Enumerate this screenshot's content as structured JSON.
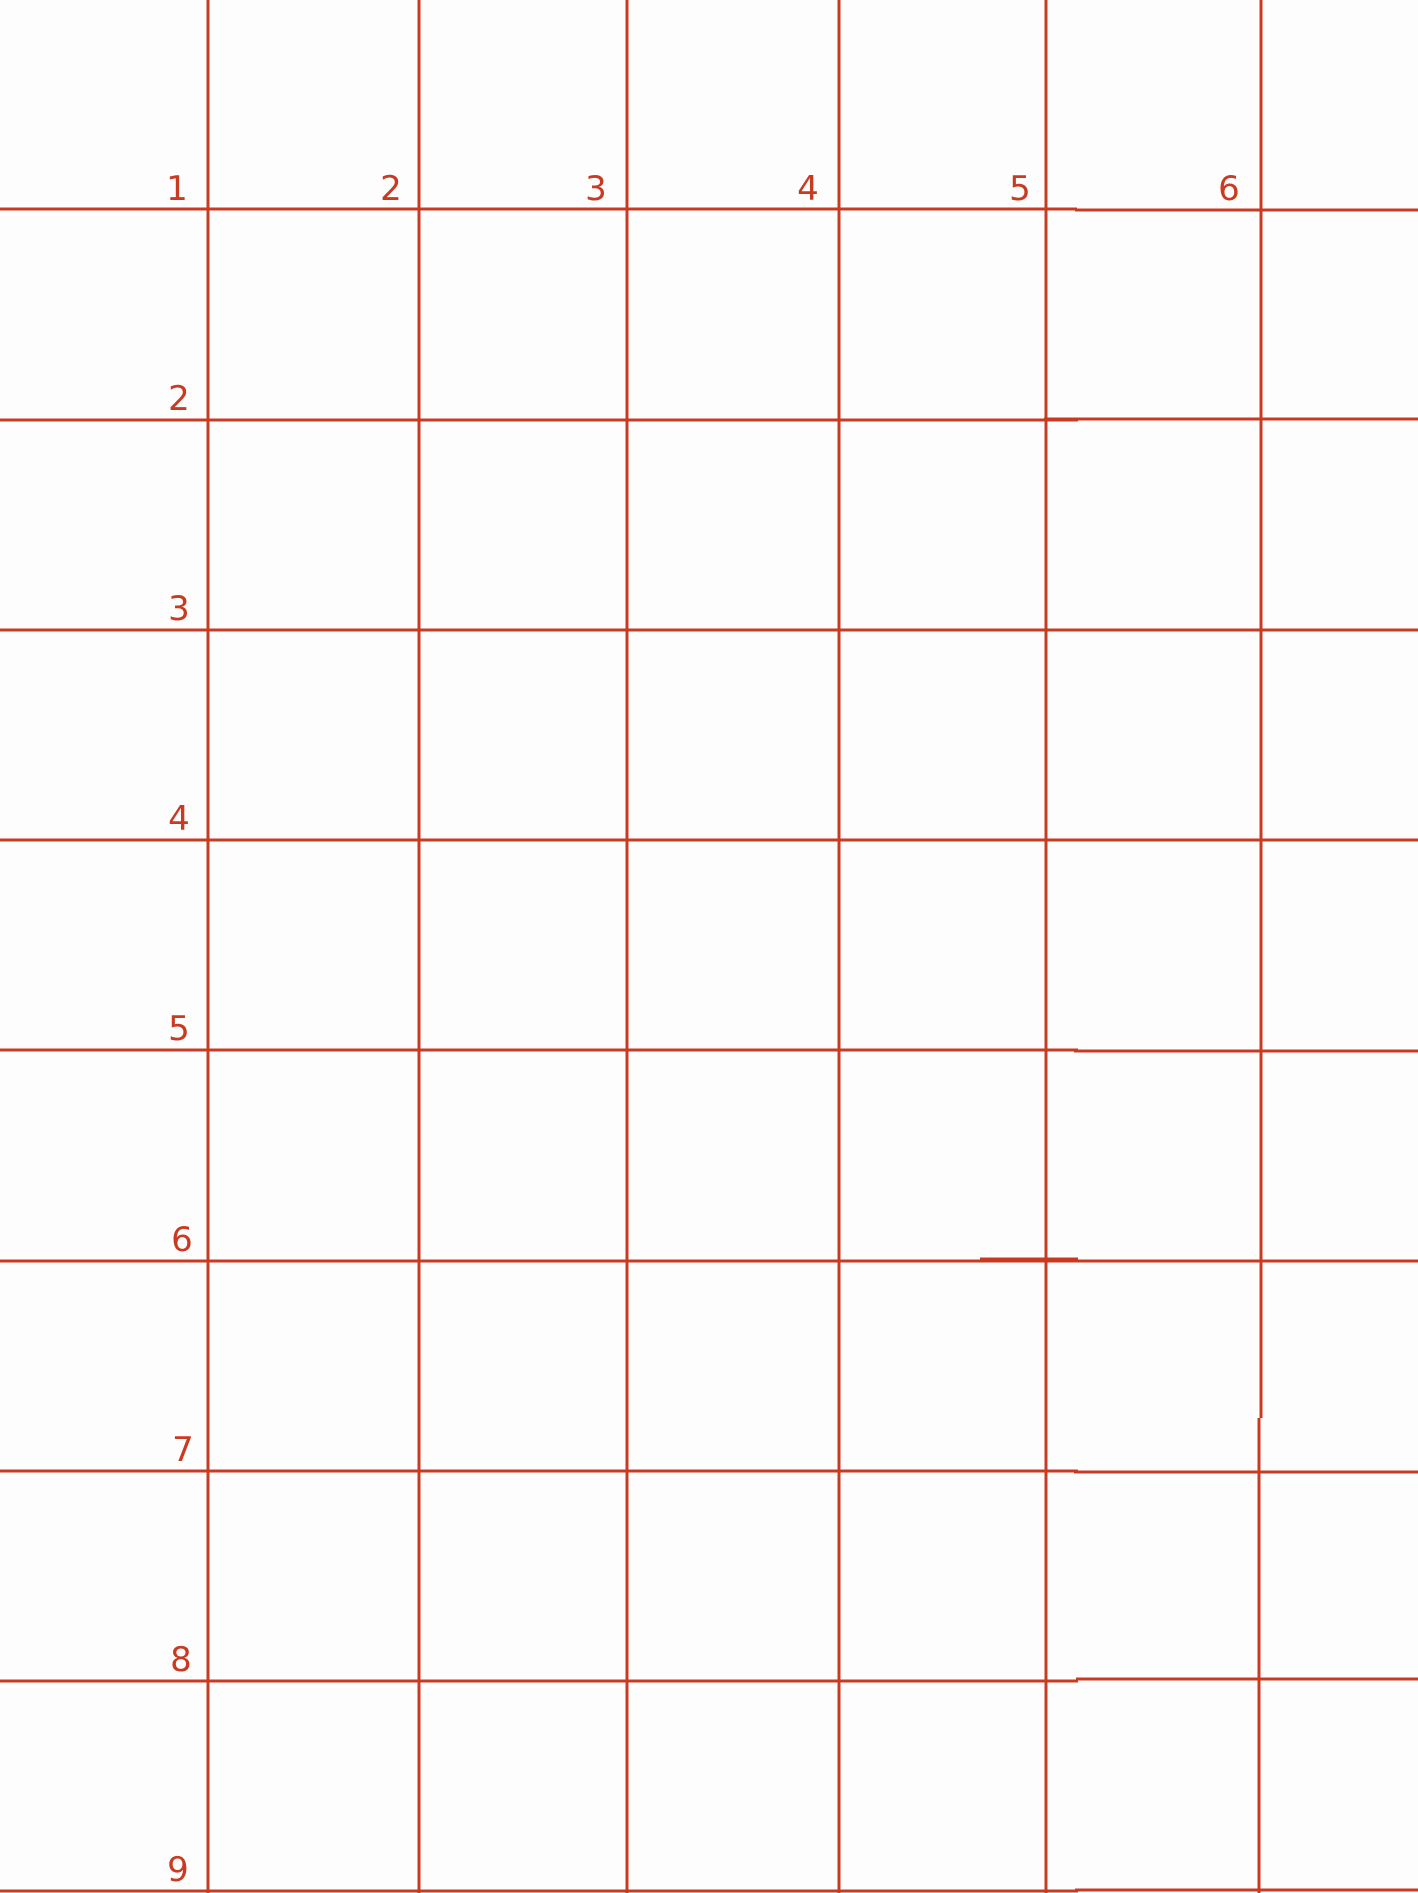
{
  "grid": {
    "line_color": "#c93a22",
    "label_color": "#c93a22",
    "column_labels": [
      "1",
      "2",
      "3",
      "4",
      "5",
      "6"
    ],
    "row_labels": [
      "2",
      "3",
      "4",
      "5",
      "6",
      "7",
      "8",
      "9"
    ]
  }
}
